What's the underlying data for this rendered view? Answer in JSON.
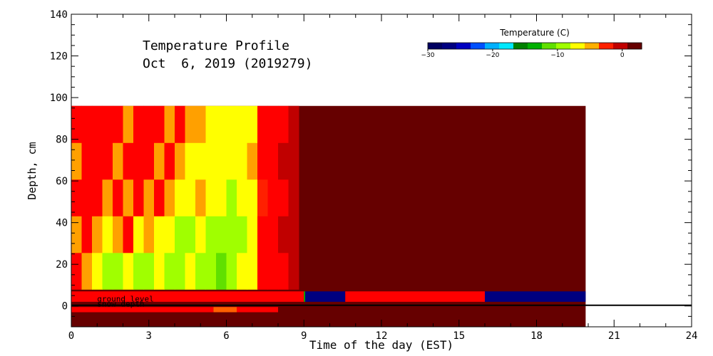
{
  "chart_data": {
    "type": "heatmap",
    "title_line1": "Temperature Profile",
    "title_line2": "Oct  6, 2019 (2019279)",
    "xlabel": "Time of the day (EST)",
    "ylabel": "Depth, cm",
    "xlim": [
      0,
      24
    ],
    "ylim": [
      -10,
      140
    ],
    "x_ticks": [
      0,
      3,
      6,
      9,
      12,
      15,
      18,
      21,
      24
    ],
    "y_ticks": [
      0,
      20,
      40,
      60,
      80,
      100,
      120,
      140
    ],
    "colorbar": {
      "title": "Temperature (C)",
      "range": [
        -30,
        3
      ],
      "ticks": [
        -30,
        -20,
        -10,
        0
      ],
      "colors": [
        "#000060",
        "#000080",
        "#0000c0",
        "#0050ff",
        "#00b0ff",
        "#00e8ff",
        "#008000",
        "#00b000",
        "#60e000",
        "#a0ff00",
        "#ffff00",
        "#ffb000",
        "#ff2000",
        "#c00000",
        "#660000"
      ]
    },
    "heatmap_extent": {
      "time_start": 0,
      "time_end": 19.9,
      "depth_min": -10,
      "depth_max": 96
    },
    "profile_columns": [
      {
        "t0": 0.0,
        "t1": 0.4,
        "cells": [
          "#ff0000",
          "#ffa000",
          "#ff0000",
          "#ffa000",
          "#ff0000"
        ]
      },
      {
        "t0": 0.4,
        "t1": 0.8,
        "cells": [
          "#ffa000",
          "#ff0000",
          "#ff0000",
          "#ff0000",
          "#ff0000"
        ]
      },
      {
        "t0": 0.8,
        "t1": 1.2,
        "cells": [
          "#ffff00",
          "#ffa000",
          "#ff0000",
          "#ff0000",
          "#ff0000"
        ]
      },
      {
        "t0": 1.2,
        "t1": 1.6,
        "cells": [
          "#a0ff00",
          "#ffff00",
          "#ffa000",
          "#ff0000",
          "#ff0000"
        ]
      },
      {
        "t0": 1.6,
        "t1": 2.0,
        "cells": [
          "#a0ff00",
          "#ffa000",
          "#ff0000",
          "#ffa000",
          "#ff0000"
        ]
      },
      {
        "t0": 2.0,
        "t1": 2.4,
        "cells": [
          "#ffff00",
          "#ff0000",
          "#ffa000",
          "#ff0000",
          "#ffa000"
        ]
      },
      {
        "t0": 2.4,
        "t1": 2.8,
        "cells": [
          "#a0ff00",
          "#ffff00",
          "#ff0000",
          "#ff0000",
          "#ff0000"
        ]
      },
      {
        "t0": 2.8,
        "t1": 3.2,
        "cells": [
          "#a0ff00",
          "#ffa000",
          "#ffa000",
          "#ff0000",
          "#ff0000"
        ]
      },
      {
        "t0": 3.2,
        "t1": 3.6,
        "cells": [
          "#ffff00",
          "#ffff00",
          "#ff0000",
          "#ffa000",
          "#ff0000"
        ]
      },
      {
        "t0": 3.6,
        "t1": 4.0,
        "cells": [
          "#a0ff00",
          "#ffff00",
          "#ffa000",
          "#ff0000",
          "#ffa000"
        ]
      },
      {
        "t0": 4.0,
        "t1": 4.4,
        "cells": [
          "#a0ff00",
          "#a0ff00",
          "#ffff00",
          "#ffa000",
          "#ff0000"
        ]
      },
      {
        "t0": 4.4,
        "t1": 4.8,
        "cells": [
          "#ffff00",
          "#a0ff00",
          "#ffff00",
          "#ffff00",
          "#ffa000"
        ]
      },
      {
        "t0": 4.8,
        "t1": 5.2,
        "cells": [
          "#a0ff00",
          "#ffff00",
          "#ffa000",
          "#ffff00",
          "#ffa000"
        ]
      },
      {
        "t0": 5.2,
        "t1": 5.6,
        "cells": [
          "#a0ff00",
          "#a0ff00",
          "#ffff00",
          "#ffff00",
          "#ffff00"
        ]
      },
      {
        "t0": 5.6,
        "t1": 6.0,
        "cells": [
          "#60e000",
          "#a0ff00",
          "#ffff00",
          "#ffff00",
          "#ffff00"
        ]
      },
      {
        "t0": 6.0,
        "t1": 6.4,
        "cells": [
          "#a0ff00",
          "#a0ff00",
          "#a0ff00",
          "#ffff00",
          "#ffff00"
        ]
      },
      {
        "t0": 6.4,
        "t1": 6.8,
        "cells": [
          "#ffff00",
          "#a0ff00",
          "#ffff00",
          "#ffff00",
          "#ffff00"
        ]
      },
      {
        "t0": 6.8,
        "t1": 7.2,
        "cells": [
          "#ffff00",
          "#ffff00",
          "#ffff00",
          "#ffa000",
          "#ffff00"
        ]
      },
      {
        "t0": 7.2,
        "t1": 7.6,
        "cells": [
          "#ff0000",
          "#ff0000",
          "#ff2000",
          "#ff0000",
          "#ff0000"
        ]
      },
      {
        "t0": 7.6,
        "t1": 8.0,
        "cells": [
          "#ff0000",
          "#ff0000",
          "#ff0000",
          "#ff0000",
          "#ff0000"
        ]
      },
      {
        "t0": 8.0,
        "t1": 8.4,
        "cells": [
          "#ff0000",
          "#c00000",
          "#ff0000",
          "#c00000",
          "#ff0000"
        ]
      },
      {
        "t0": 8.4,
        "t1": 8.8,
        "cells": [
          "#c00000",
          "#c00000",
          "#c00000",
          "#c00000",
          "#c00000"
        ]
      }
    ],
    "background_color": "#660000",
    "surface_strips": [
      {
        "t0": 0.0,
        "t1": 9.0,
        "color": "#ff0000",
        "label": ""
      },
      {
        "t0": 9.0,
        "t1": 9.05,
        "color": "#00b000",
        "label": ""
      },
      {
        "t0": 9.05,
        "t1": 10.6,
        "color": "#000080",
        "label": ""
      },
      {
        "t0": 10.6,
        "t1": 16.0,
        "color": "#ff0000",
        "label": ""
      },
      {
        "t0": 16.0,
        "t1": 19.9,
        "color": "#000080",
        "label": ""
      }
    ],
    "subsurface_strips": [
      {
        "t0": 0.0,
        "t1": 5.5,
        "color": "#ff0000"
      },
      {
        "t0": 5.5,
        "t1": 6.4,
        "color": "#ff6000"
      },
      {
        "t0": 6.4,
        "t1": 8.0,
        "color": "#ff0000"
      }
    ],
    "annotations": [
      "ground level",
      "snow depth"
    ],
    "ground_level_depth": 0
  }
}
